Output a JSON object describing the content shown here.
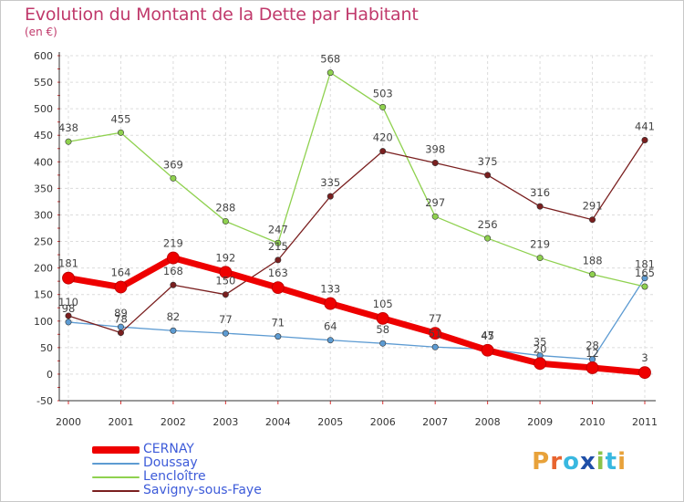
{
  "header": {
    "title": "Evolution du Montant de la Dette par Habitant",
    "subtitle": "(en €)"
  },
  "logo": {
    "text": "Proxiti",
    "colors": [
      "#e8a23a",
      "#e8642f",
      "#39b8e0",
      "#1f4fa8",
      "#8bc34a",
      "#39b8e0",
      "#e8a23a"
    ]
  },
  "chart_data": {
    "type": "line",
    "categories": [
      "2000",
      "2001",
      "2002",
      "2003",
      "2004",
      "2005",
      "2006",
      "2007",
      "2008",
      "2009",
      "2010",
      "2011"
    ],
    "ylim": [
      -50,
      600
    ],
    "yticks": [
      -50,
      0,
      50,
      100,
      150,
      200,
      250,
      300,
      350,
      400,
      450,
      500,
      550,
      600
    ],
    "ytick_labels": [
      "-50",
      "0",
      "50",
      "100",
      "150",
      "200",
      "250",
      "300",
      "350",
      "400",
      "450",
      "500",
      "550",
      "600"
    ],
    "grid": true,
    "legend_position": "bottom-left",
    "series": [
      {
        "name": "CERNAY",
        "color": "#ee0000",
        "values": [
          181,
          164,
          219,
          192,
          163,
          133,
          105,
          77,
          45,
          20,
          12,
          3
        ],
        "labels": [
          "181",
          "164",
          "219",
          "192",
          "163",
          "133",
          "105",
          "77",
          "45",
          "20",
          "12",
          "3"
        ]
      },
      {
        "name": "Doussay",
        "color": "#5d9bd2",
        "values": [
          98,
          89,
          82,
          77,
          71,
          64,
          58,
          51,
          47,
          35,
          28,
          181
        ],
        "labels": [
          "98",
          "89",
          "82",
          "77",
          "71",
          "64",
          "58",
          "51",
          "47",
          "35",
          "28",
          "181"
        ]
      },
      {
        "name": "Lencloître",
        "color": "#8fd14f",
        "values": [
          438,
          455,
          369,
          288,
          247,
          568,
          503,
          297,
          256,
          219,
          188,
          165
        ],
        "labels": [
          "438",
          "455",
          "369",
          "288",
          "247",
          "568",
          "503",
          "297",
          "256",
          "219",
          "188",
          "165"
        ]
      },
      {
        "name": "Savigny-sous-Faye",
        "color": "#7a1f1f",
        "values": [
          110,
          78,
          168,
          150,
          215,
          335,
          420,
          398,
          375,
          316,
          291,
          441
        ],
        "labels": [
          "110",
          "78",
          "168",
          "150",
          "215",
          "335",
          "420",
          "398",
          "375",
          "316",
          "291",
          "441"
        ]
      }
    ]
  }
}
